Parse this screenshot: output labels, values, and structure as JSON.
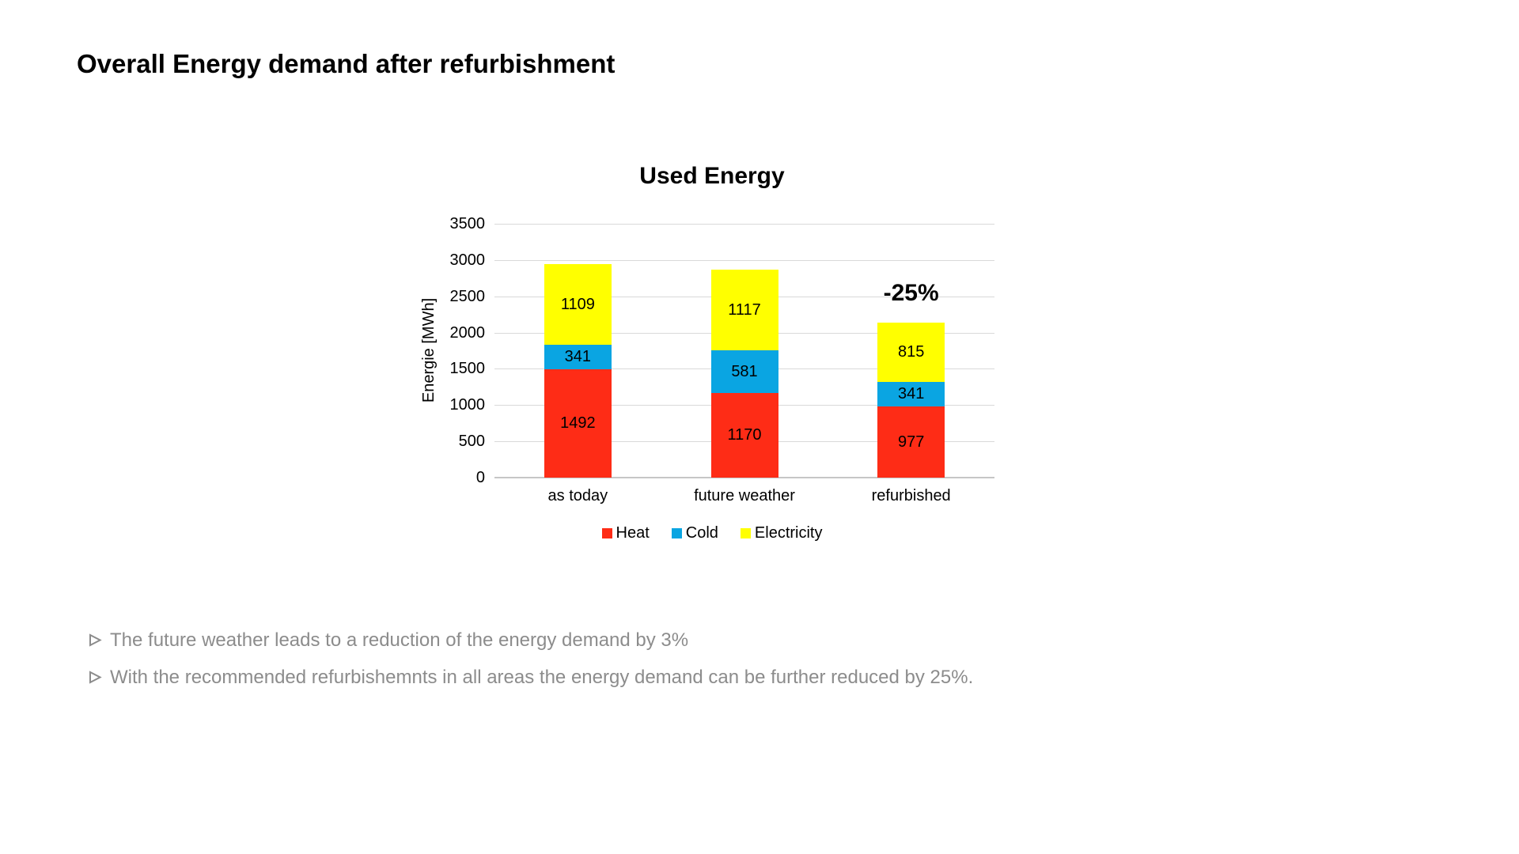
{
  "slide": {
    "title": "Overall Energy demand after refurbishment",
    "bullets": [
      "The future weather leads to a reduction of the energy demand by 3%",
      "With the recommended refurbishemnts in all areas the energy demand can be further reduced by 25%."
    ]
  },
  "chart_data": {
    "type": "bar",
    "stacked": true,
    "title": "Used Energy",
    "xlabel": "",
    "ylabel": "Energie [MWh]",
    "categories": [
      "as today",
      "future weather",
      "refurbished"
    ],
    "series": [
      {
        "name": "Heat",
        "color": "#FE2C16",
        "values": [
          1492,
          1170,
          977
        ]
      },
      {
        "name": "Cold",
        "color": "#0AA5E2",
        "values": [
          341,
          581,
          341
        ]
      },
      {
        "name": "Electricity",
        "color": "#FFFF00",
        "values": [
          1109,
          1117,
          815
        ]
      }
    ],
    "ylim": [
      0,
      3500
    ],
    "ytick_step": 500,
    "grid": true,
    "gridline_color": "#D9D9D9",
    "axis_line_color": "#C6C6C6",
    "legend_position": "bottom",
    "annotations": [
      {
        "text": "-25%",
        "category": "refurbished"
      }
    ]
  },
  "colors": {
    "background": "#FFFFFF",
    "title_text": "#000000",
    "bullet_text": "#8C8C8C"
  }
}
